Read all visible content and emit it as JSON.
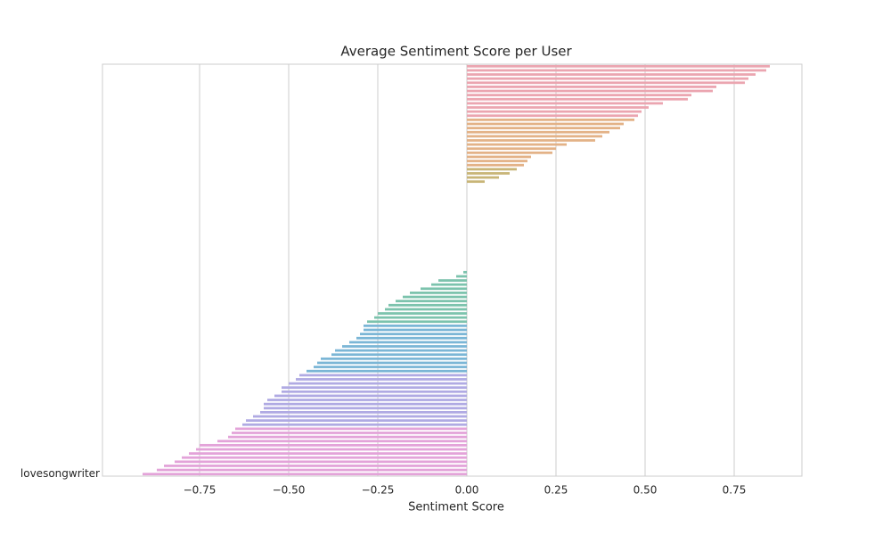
{
  "chart_data": {
    "type": "barh",
    "title": "Average Sentiment Score per User",
    "xlabel": "Sentiment Score",
    "categories": [
      null,
      null,
      null,
      null,
      null,
      null,
      null,
      null,
      null,
      null,
      null,
      null,
      null,
      null,
      null,
      null,
      null,
      null,
      null,
      null,
      null,
      null,
      null,
      null,
      null,
      null,
      null,
      null,
      null,
      null,
      null,
      null,
      null,
      null,
      null,
      null,
      null,
      null,
      null,
      null,
      null,
      null,
      null,
      null,
      null,
      null,
      null,
      null,
      null,
      null,
      null,
      null,
      null,
      null,
      null,
      null,
      null,
      null,
      null,
      null,
      null,
      null,
      null,
      null,
      null,
      null,
      null,
      null,
      null,
      null,
      null,
      null,
      null,
      null,
      null,
      null,
      null,
      null,
      null,
      null,
      null,
      null,
      null,
      null,
      null,
      null,
      null,
      null,
      null,
      null,
      null,
      null,
      null,
      null,
      null,
      null,
      null,
      null,
      null,
      "lovesongwriter"
    ],
    "values": [
      0.85,
      0.84,
      0.81,
      0.79,
      0.78,
      0.7,
      0.69,
      0.63,
      0.62,
      0.55,
      0.51,
      0.49,
      0.48,
      0.47,
      0.44,
      0.43,
      0.4,
      0.38,
      0.36,
      0.28,
      0.25,
      0.24,
      0.18,
      0.17,
      0.16,
      0.14,
      0.12,
      0.09,
      0.05,
      0,
      0,
      0,
      0,
      0,
      0,
      0,
      0,
      0,
      0,
      0,
      0,
      0,
      0,
      0,
      0,
      0,
      0,
      0,
      0,
      0,
      -0.01,
      -0.03,
      -0.08,
      -0.1,
      -0.13,
      -0.16,
      -0.18,
      -0.2,
      -0.22,
      -0.23,
      -0.25,
      -0.26,
      -0.28,
      -0.29,
      -0.29,
      -0.3,
      -0.31,
      -0.33,
      -0.35,
      -0.37,
      -0.38,
      -0.41,
      -0.42,
      -0.43,
      -0.45,
      -0.47,
      -0.48,
      -0.5,
      -0.52,
      -0.52,
      -0.54,
      -0.56,
      -0.57,
      -0.57,
      -0.58,
      -0.6,
      -0.62,
      -0.63,
      -0.65,
      -0.66,
      -0.67,
      -0.7,
      -0.75,
      -0.76,
      -0.78,
      -0.8,
      -0.82,
      -0.85,
      -0.87,
      -0.91
    ],
    "palette": [
      "#eba5b0",
      "#e3b287",
      "#c8b577",
      "#9ec182",
      "#7cc3ad",
      "#7bb6d6",
      "#b0aae3",
      "#e3a3d9"
    ],
    "xlim": [
      -1.0225,
      0.94
    ],
    "xticks": [
      -0.75,
      -0.5,
      -0.25,
      0.0,
      0.25,
      0.5,
      0.75
    ],
    "xtick_labels": [
      "−0.75",
      "−0.50",
      "−0.25",
      "0.00",
      "0.25",
      "0.50",
      "0.75"
    ],
    "grid": true
  }
}
